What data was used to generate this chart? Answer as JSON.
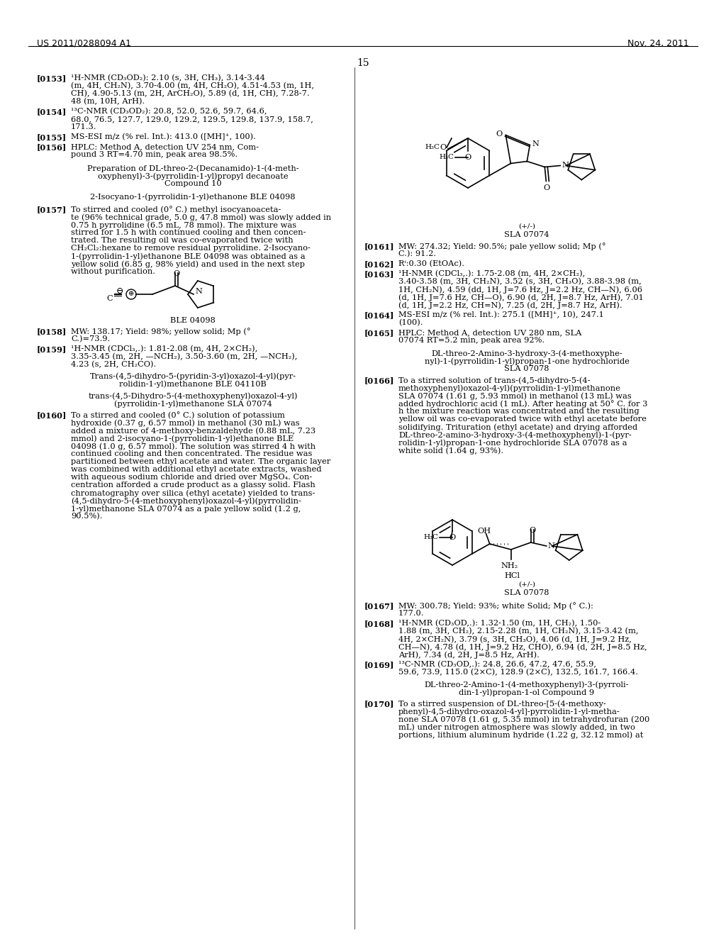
{
  "bg_color": "#ffffff",
  "header_left": "US 2011/0288094 A1",
  "header_right": "Nov. 24, 2011",
  "page_number": "15"
}
